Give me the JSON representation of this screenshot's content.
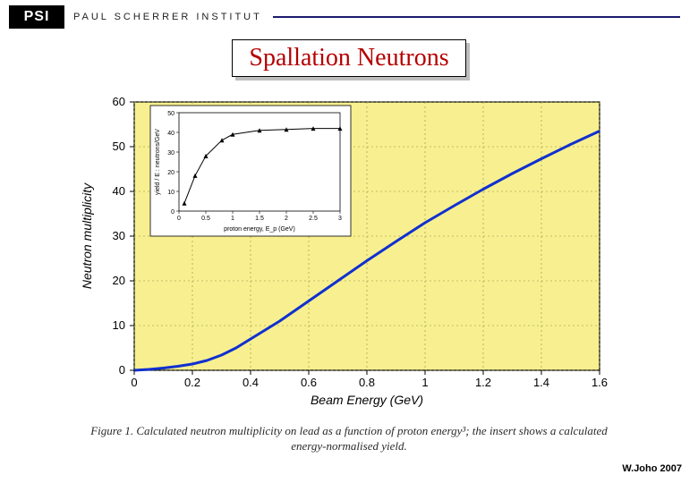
{
  "header": {
    "logo_text": "PSI",
    "institute_name": "PAUL SCHERRER INSTITUT",
    "rule_color": "#1a1a6e"
  },
  "title": {
    "text": "Spallation Neutrons",
    "color": "#b40000",
    "fontsize": 28,
    "border_color": "#000000",
    "shadow_color": "#bdbdbd"
  },
  "main_chart": {
    "type": "line",
    "background_color": "#f8f090",
    "plot_background": "#f8f090",
    "axis_color": "#000000",
    "grid_color": "#8a8a4a",
    "grid_on": true,
    "line_color": "#1030d0",
    "line_width": 3,
    "xlabel": "Beam Energy (GeV)",
    "ylabel": "Neutron multiplicity",
    "label_fontsize": 14,
    "label_style": "italic",
    "tick_fontsize": 13,
    "xlim": [
      0,
      1.6
    ],
    "ylim": [
      0,
      60
    ],
    "xticks": [
      0,
      0.2,
      0.4,
      0.6,
      0.8,
      1,
      1.2,
      1.4,
      1.6
    ],
    "yticks": [
      0,
      10,
      20,
      30,
      40,
      50,
      60
    ],
    "data_x": [
      0,
      0.05,
      0.1,
      0.15,
      0.2,
      0.25,
      0.3,
      0.35,
      0.4,
      0.5,
      0.6,
      0.7,
      0.8,
      0.9,
      1.0,
      1.1,
      1.2,
      1.3,
      1.4,
      1.5,
      1.6
    ],
    "data_y": [
      0,
      0.2,
      0.5,
      0.9,
      1.4,
      2.2,
      3.4,
      5.0,
      7.0,
      11.0,
      15.5,
      20.0,
      24.5,
      28.8,
      33.0,
      36.8,
      40.5,
      44.0,
      47.3,
      50.5,
      53.5
    ]
  },
  "inset_chart": {
    "type": "scatter-line",
    "background_color": "#ffffff",
    "border_color": "#000000",
    "axis_color": "#000000",
    "line_color": "#000000",
    "marker_color": "#000000",
    "marker_shape": "triangle",
    "marker_size": 5,
    "xlabel": "proton energy, E_p (GeV)",
    "ylabel": "yield / E  : neutrons/GeV",
    "label_fontsize": 7,
    "tick_fontsize": 7,
    "xlim": [
      0,
      3
    ],
    "ylim": [
      0,
      50
    ],
    "xticks": [
      0,
      0.5,
      1,
      1.5,
      2,
      2.5,
      3
    ],
    "yticks": [
      0,
      10,
      20,
      30,
      40,
      50
    ],
    "data_x": [
      0.1,
      0.3,
      0.5,
      0.8,
      1.0,
      1.5,
      2.0,
      2.5,
      3.0
    ],
    "data_y": [
      4,
      18,
      28,
      36,
      39,
      41,
      41.5,
      42,
      42
    ],
    "box_color": "#000000"
  },
  "caption": {
    "text": "Figure 1. Calculated neutron multiplicity on lead as a function of proton energy³; the insert shows a calculated energy-normalised yield.",
    "fontsize": 13,
    "color": "#2a2a2a"
  },
  "footer": {
    "text": "W.Joho 2007",
    "fontsize": 11
  }
}
